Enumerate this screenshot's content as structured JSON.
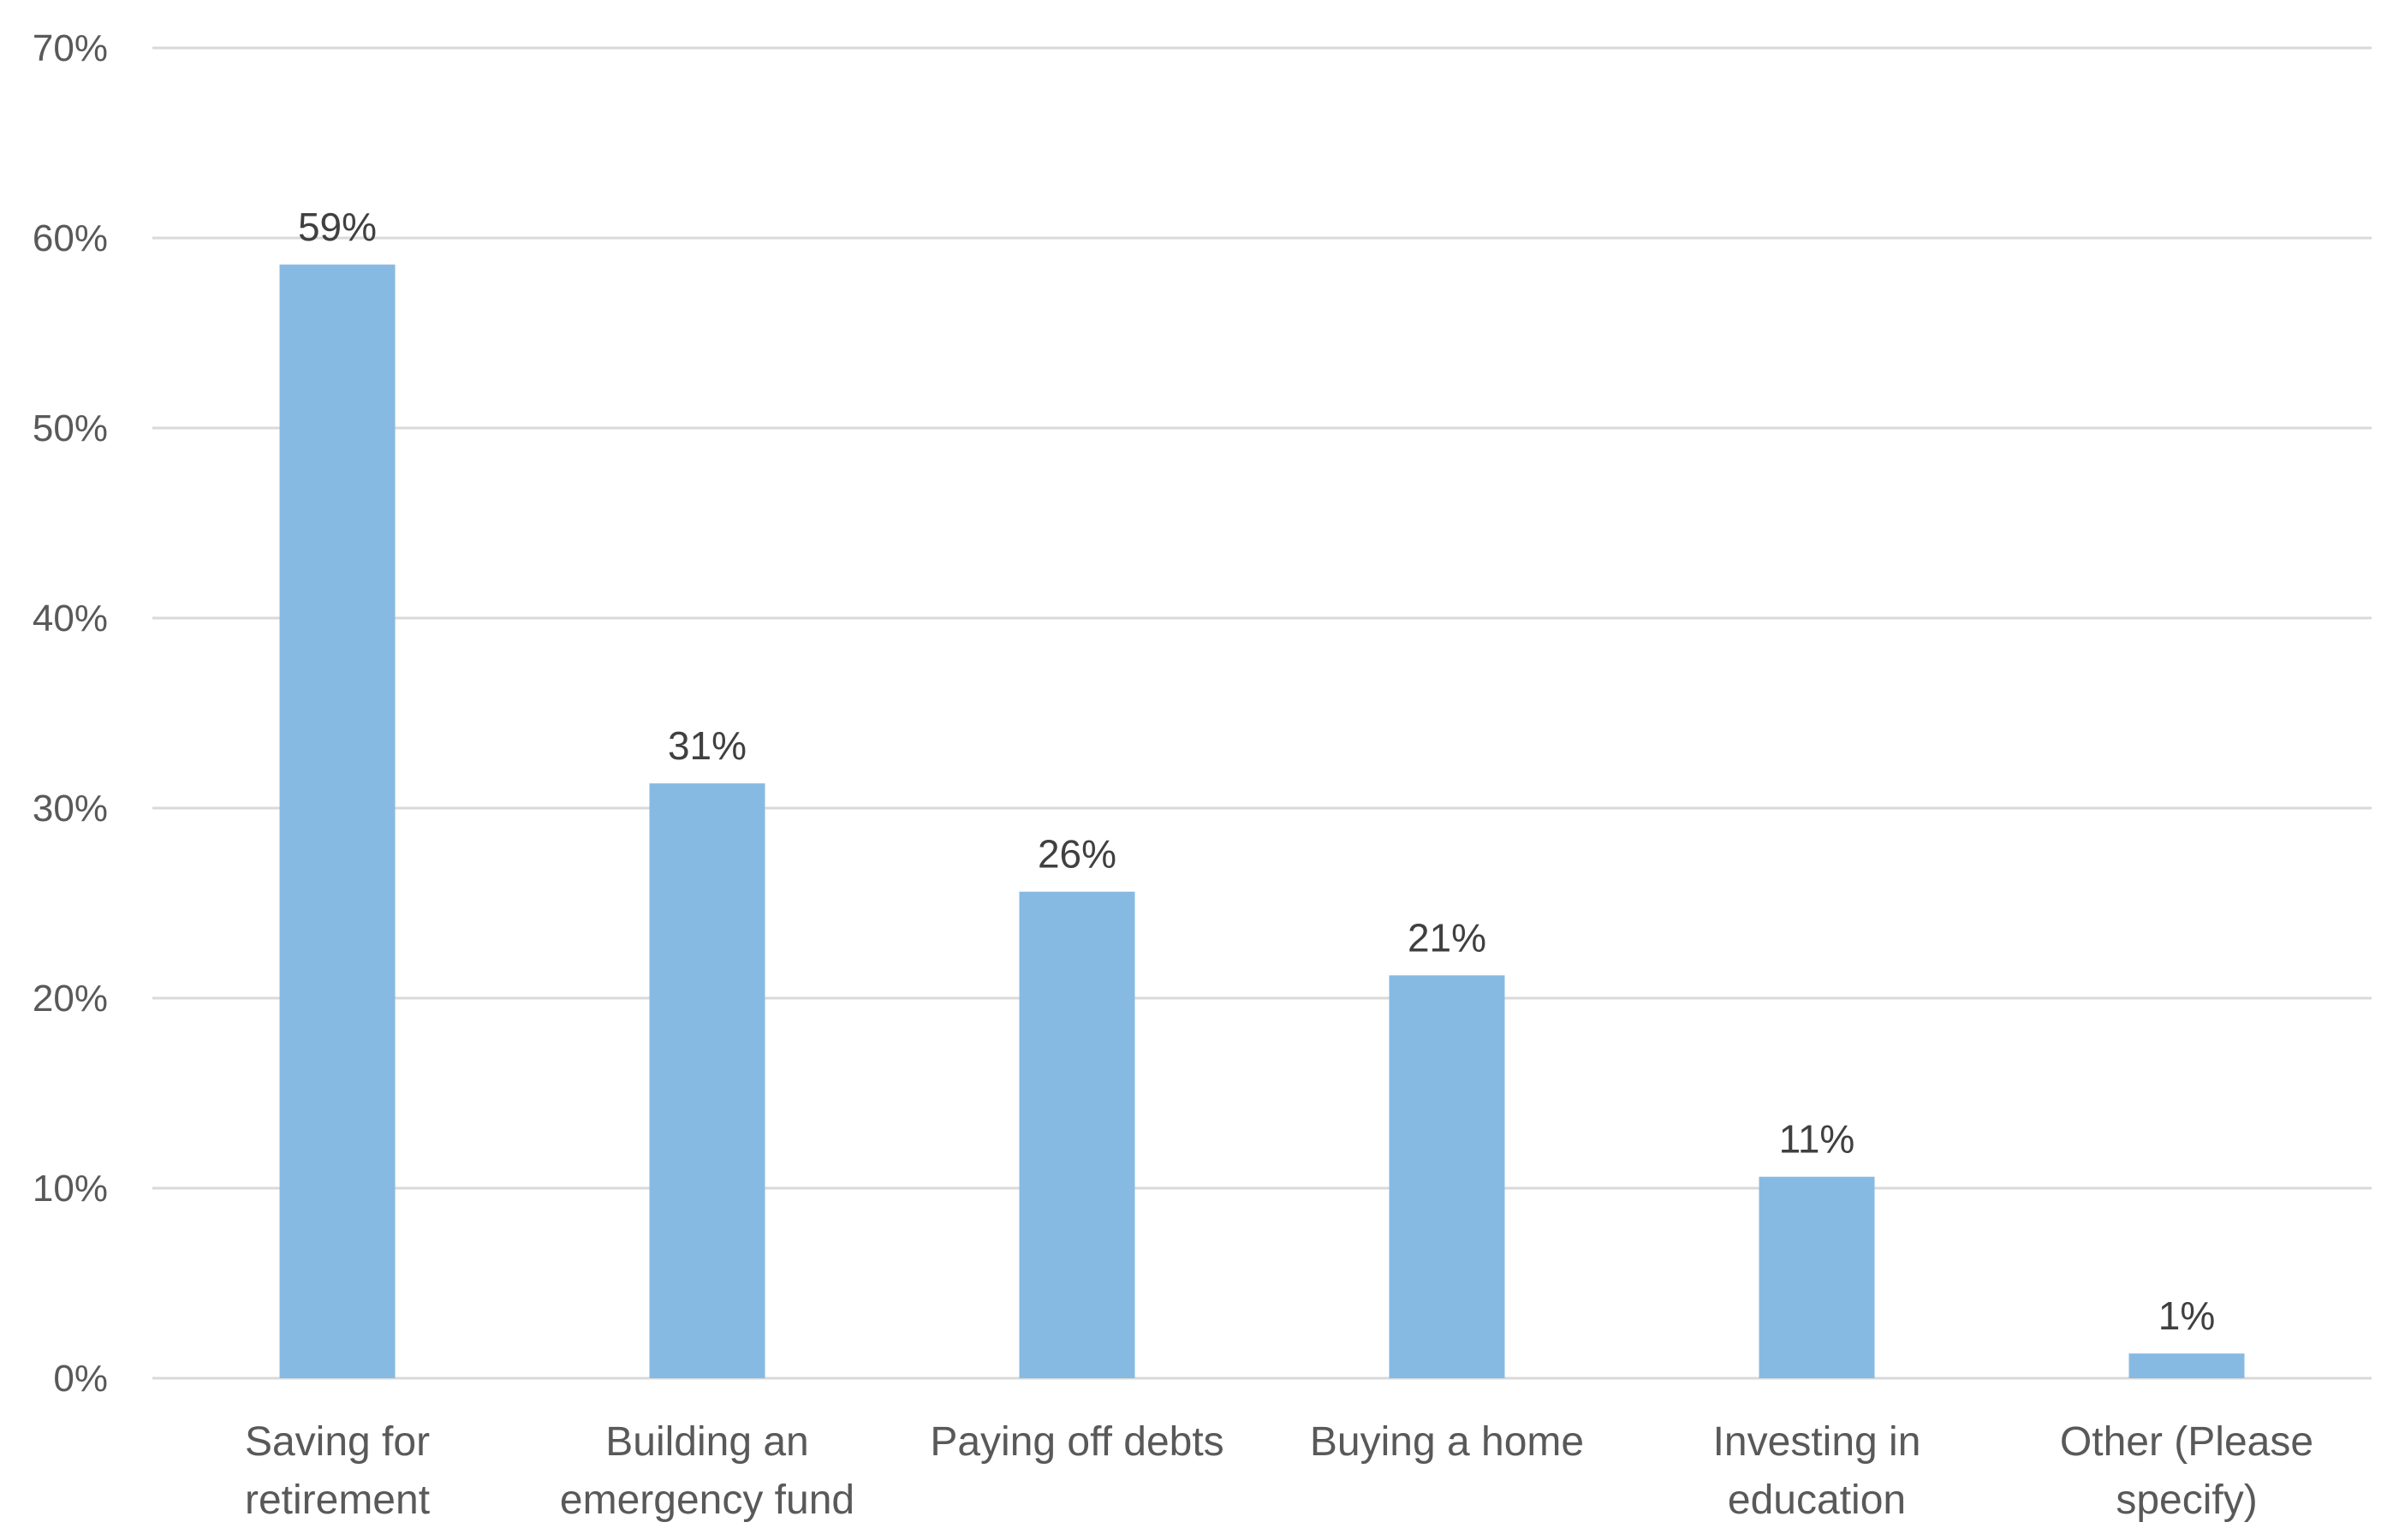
{
  "chart_data": {
    "type": "bar",
    "title": "",
    "xlabel": "",
    "ylabel": "",
    "categories": [
      [
        "Saving for",
        "retirement"
      ],
      [
        "Building an",
        "emergency fund"
      ],
      [
        "Paying off debts"
      ],
      [
        "Buying a home"
      ],
      [
        "Investing in",
        "education"
      ],
      [
        "Other (Please",
        "specify)"
      ]
    ],
    "values": [
      58.6,
      31.3,
      25.6,
      21.2,
      10.6,
      1.3
    ],
    "data_labels": [
      "59%",
      "31%",
      "26%",
      "21%",
      "11%",
      "1%"
    ],
    "ylim": [
      0,
      70
    ],
    "yticks": [
      0,
      10,
      20,
      30,
      40,
      50,
      60,
      70
    ],
    "ytick_labels": [
      "0%",
      "10%",
      "20%",
      "30%",
      "40%",
      "50%",
      "60%",
      "70%"
    ],
    "grid": true,
    "legend": "none",
    "colors": {
      "bar": "#86bae2",
      "grid": "#d9d9d9",
      "tick_text": "#595959",
      "data_label_text": "#404040"
    }
  }
}
